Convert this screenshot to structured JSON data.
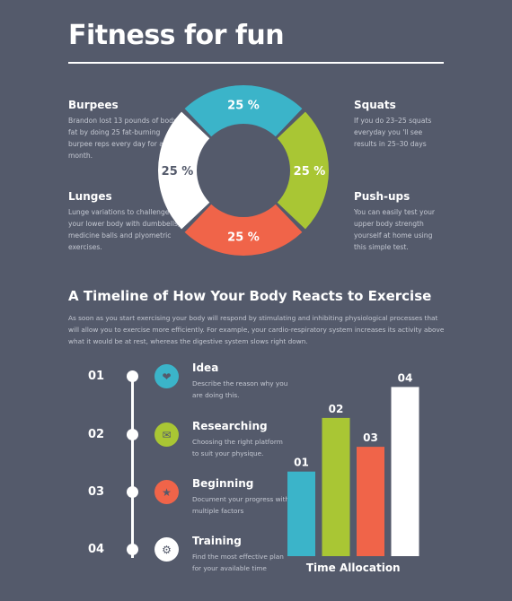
{
  "title": "Fitness for fun",
  "features": [
    {
      "title": "Burpees",
      "desc": "Brandon lost 13 pounds of body fat by doing 25 fat-burning burpee reps every day for a month."
    },
    {
      "title": "Squats",
      "desc": "If you do 23–25 squats everyday you 'll see results in 25–30 days"
    },
    {
      "title": "Lunges",
      "desc": "Lunge variations to challenge your lower body with dumbbells, medicine balls and plyometric exercises."
    },
    {
      "title": "Push-ups",
      "desc": "You can easily test your upper body strength yourself at home using this simple test."
    }
  ],
  "section": {
    "title": "A Timeline of How Your Body Reacts to Exercise",
    "desc": "As soon as you start exercising your body will respond by stimulating and inhibiting physiological processes that will allow you to exercise more efficiently. For example, your cardio-respiratory system increases its activity above what it would be at rest, whereas the digestive system slows right down."
  },
  "steps": [
    {
      "num": "01",
      "title": "Idea",
      "desc": "Describe the reason why you are doing this.",
      "icon": "heart-icon",
      "color": "#3bb4c9"
    },
    {
      "num": "02",
      "title": "Researching",
      "desc": "Choosing the right platform to suit your physique.",
      "icon": "envelope-icon",
      "color": "#a9c634"
    },
    {
      "num": "03",
      "title": "Beginning",
      "desc": "Document your progress with multiple factors",
      "icon": "star-icon",
      "color": "#f06449"
    },
    {
      "num": "04",
      "title": "Training",
      "desc": "Find the most effective plan for your available time",
      "icon": "gear-icon",
      "color": "#ffffff"
    }
  ],
  "chart_data": [
    {
      "type": "pie",
      "categories": [
        "Squats",
        "Push-ups",
        "Lunges",
        "Burpees"
      ],
      "labels": [
        "25 %",
        "25 %",
        "25 %",
        "25 %"
      ],
      "values": [
        25,
        25,
        25,
        25
      ],
      "colors": [
        "#3bb4c9",
        "#a9c634",
        "#f06449",
        "#ffffff"
      ],
      "donut": true
    },
    {
      "type": "bar",
      "categories": [
        "01",
        "02",
        "03",
        "04"
      ],
      "values": [
        0.41,
        0.67,
        0.53,
        0.82
      ],
      "colors": [
        "#3bb4c9",
        "#a9c634",
        "#f06449",
        "#ffffff"
      ],
      "title": "Time Allocation",
      "ylim": [
        0,
        1
      ]
    }
  ]
}
